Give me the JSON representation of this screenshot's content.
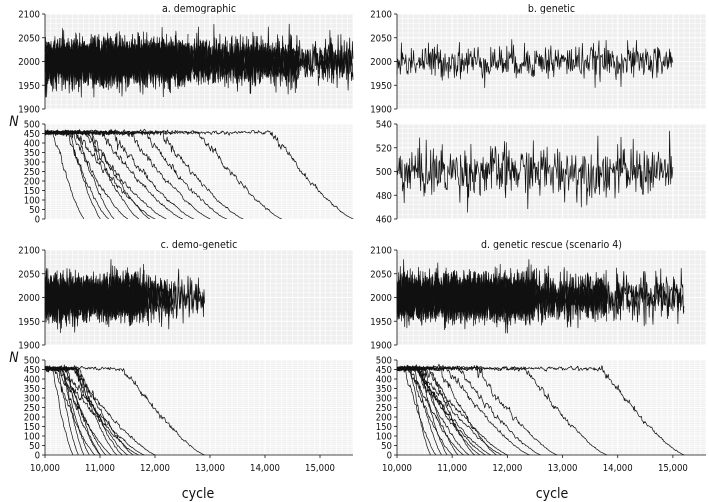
{
  "figure": {
    "y_axis_label": "N",
    "x_axis_label": "cycle"
  },
  "chart_data": [
    {
      "id": "a",
      "type": "line",
      "title": "a. demographic",
      "xlim": [
        10000,
        15600
      ],
      "top": {
        "ylim": [
          1900,
          2100
        ],
        "yticks": [
          1900,
          1950,
          2000,
          2050,
          2100
        ],
        "mean": 2000,
        "spread": 22,
        "segments": [
          [
            10000,
            12600,
            16
          ],
          [
            12600,
            14600,
            8
          ],
          [
            14600,
            15600,
            3
          ]
        ]
      },
      "bottom": {
        "ylim": [
          0,
          500
        ],
        "yticks": [
          0,
          50,
          100,
          150,
          200,
          250,
          300,
          350,
          400,
          450,
          500
        ],
        "extinction_cycles": [
          10700,
          11000,
          11150,
          11250,
          11500,
          11700,
          11900,
          12000,
          12200,
          12500,
          12700,
          13000,
          13300,
          13600,
          14300,
          15600
        ]
      },
      "xticks": []
    },
    {
      "id": "b",
      "type": "line",
      "title": "b. genetic",
      "xlim": [
        10000,
        15600
      ],
      "top": {
        "ylim": [
          1900,
          2100
        ],
        "yticks": [
          1900,
          1950,
          2000,
          2050,
          2100
        ],
        "mean": 2000,
        "spread": 18,
        "segments": [
          [
            10000,
            15000,
            1
          ]
        ]
      },
      "bottom": {
        "ylim": [
          460,
          540
        ],
        "yticks": [
          460,
          480,
          500,
          520,
          540
        ],
        "mean": 500,
        "spread": 11,
        "segments": [
          [
            10000,
            15000,
            1
          ]
        ]
      },
      "xticks": []
    },
    {
      "id": "c",
      "type": "line",
      "title": "c. demo-genetic",
      "xlim": [
        10000,
        15600
      ],
      "top": {
        "ylim": [
          1900,
          2100
        ],
        "yticks": [
          1900,
          1950,
          2000,
          2050,
          2100
        ],
        "mean": 2000,
        "spread": 22,
        "segments": [
          [
            10000,
            11800,
            18
          ],
          [
            11800,
            12300,
            5
          ],
          [
            12300,
            12900,
            2
          ]
        ]
      },
      "bottom": {
        "ylim": [
          0,
          500
        ],
        "yticks": [
          0,
          50,
          100,
          150,
          200,
          250,
          300,
          350,
          400,
          450,
          500
        ],
        "extinction_cycles": [
          10500,
          10600,
          10700,
          10800,
          10900,
          11000,
          11000,
          11100,
          11200,
          11300,
          11400,
          11500,
          11600,
          11700,
          11800,
          12000,
          12900
        ]
      },
      "xticks": [
        "10,000",
        "11,000",
        "12,000",
        "13,000",
        "14,000",
        "15,000"
      ]
    },
    {
      "id": "d",
      "type": "line",
      "title": "d. genetic rescue (scenario 4)",
      "xlim": [
        10000,
        15600
      ],
      "top": {
        "ylim": [
          1900,
          2100
        ],
        "yticks": [
          1900,
          1950,
          2000,
          2050,
          2100
        ],
        "mean": 2000,
        "spread": 22,
        "segments": [
          [
            10000,
            12500,
            18
          ],
          [
            12500,
            13800,
            6
          ],
          [
            13800,
            15200,
            2
          ]
        ]
      },
      "bottom": {
        "ylim": [
          0,
          500
        ],
        "yticks": [
          0,
          50,
          100,
          150,
          200,
          250,
          300,
          350,
          400,
          450,
          500
        ],
        "extinction_cycles": [
          10600,
          10700,
          10800,
          10900,
          11000,
          11100,
          11200,
          11300,
          11400,
          11500,
          11600,
          11700,
          11800,
          11900,
          12000,
          12400,
          12600,
          12900,
          13800,
          15200
        ]
      },
      "xticks": [
        "10,000",
        "11,000",
        "12,000",
        "13,000",
        "14,000",
        "15,000"
      ]
    }
  ]
}
